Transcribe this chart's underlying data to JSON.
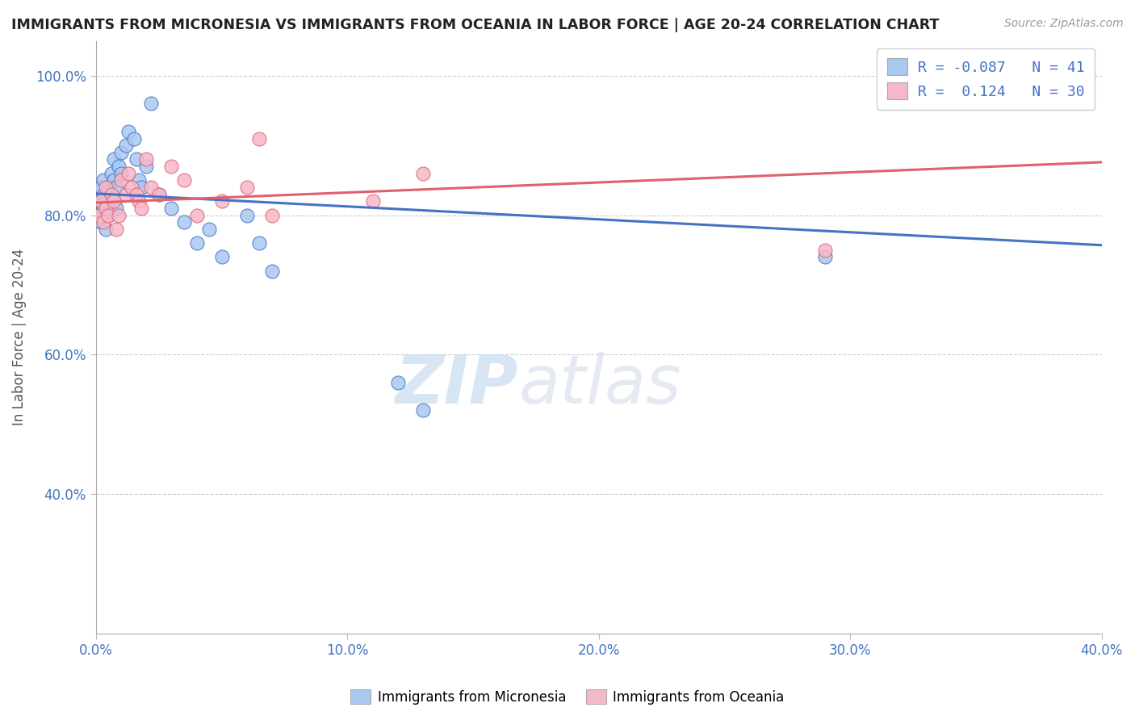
{
  "title": "IMMIGRANTS FROM MICRONESIA VS IMMIGRANTS FROM OCEANIA IN LABOR FORCE | AGE 20-24 CORRELATION CHART",
  "source": "Source: ZipAtlas.com",
  "ylabel": "In Labor Force | Age 20-24",
  "legend_label1": "Immigrants from Micronesia",
  "legend_label2": "Immigrants from Oceania",
  "R1": -0.087,
  "N1": 41,
  "R2": 0.124,
  "N2": 30,
  "color_blue": "#A8C8F0",
  "color_pink": "#F5B8C8",
  "color_blue_line": "#4472C4",
  "color_pink_line": "#E06070",
  "color_axis_labels": "#4472C4",
  "watermark_color": "#C8DCF0",
  "xlim": [
    0.0,
    0.4
  ],
  "ylim": [
    0.2,
    1.05
  ],
  "xticks": [
    0.0,
    0.1,
    0.2,
    0.3,
    0.4
  ],
  "yticks": [
    0.4,
    0.6,
    0.8,
    1.0
  ],
  "blue_x": [
    0.001,
    0.001,
    0.002,
    0.002,
    0.003,
    0.003,
    0.003,
    0.004,
    0.004,
    0.004,
    0.005,
    0.005,
    0.006,
    0.006,
    0.007,
    0.007,
    0.008,
    0.008,
    0.009,
    0.01,
    0.01,
    0.012,
    0.013,
    0.015,
    0.016,
    0.017,
    0.018,
    0.02,
    0.022,
    0.025,
    0.03,
    0.035,
    0.04,
    0.045,
    0.05,
    0.06,
    0.065,
    0.07,
    0.12,
    0.13,
    0.29
  ],
  "blue_y": [
    0.82,
    0.8,
    0.84,
    0.79,
    0.85,
    0.83,
    0.81,
    0.82,
    0.8,
    0.78,
    0.84,
    0.8,
    0.86,
    0.82,
    0.88,
    0.85,
    0.84,
    0.81,
    0.87,
    0.89,
    0.86,
    0.9,
    0.92,
    0.91,
    0.88,
    0.85,
    0.84,
    0.87,
    0.96,
    0.83,
    0.81,
    0.79,
    0.76,
    0.78,
    0.74,
    0.8,
    0.76,
    0.72,
    0.56,
    0.52,
    0.74
  ],
  "pink_x": [
    0.001,
    0.002,
    0.003,
    0.004,
    0.004,
    0.005,
    0.006,
    0.007,
    0.008,
    0.009,
    0.01,
    0.012,
    0.013,
    0.014,
    0.016,
    0.017,
    0.018,
    0.02,
    0.022,
    0.025,
    0.03,
    0.035,
    0.04,
    0.05,
    0.06,
    0.065,
    0.07,
    0.11,
    0.13,
    0.29
  ],
  "pink_y": [
    0.8,
    0.82,
    0.79,
    0.84,
    0.81,
    0.8,
    0.83,
    0.82,
    0.78,
    0.8,
    0.85,
    0.83,
    0.86,
    0.84,
    0.83,
    0.82,
    0.81,
    0.88,
    0.84,
    0.83,
    0.87,
    0.85,
    0.8,
    0.82,
    0.84,
    0.91,
    0.8,
    0.82,
    0.86,
    0.75
  ],
  "trendline_blue_y0": 0.831,
  "trendline_blue_y1": 0.757,
  "trendline_pink_y0": 0.818,
  "trendline_pink_y1": 0.876
}
